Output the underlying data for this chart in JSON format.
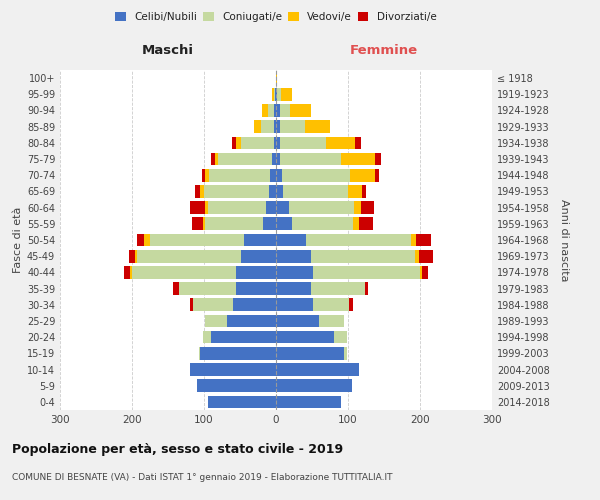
{
  "age_groups": [
    "0-4",
    "5-9",
    "10-14",
    "15-19",
    "20-24",
    "25-29",
    "30-34",
    "35-39",
    "40-44",
    "45-49",
    "50-54",
    "55-59",
    "60-64",
    "65-69",
    "70-74",
    "75-79",
    "80-84",
    "85-89",
    "90-94",
    "95-99",
    "100+"
  ],
  "birth_years": [
    "2014-2018",
    "2009-2013",
    "2004-2008",
    "1999-2003",
    "1994-1998",
    "1989-1993",
    "1984-1988",
    "1979-1983",
    "1974-1978",
    "1969-1973",
    "1964-1968",
    "1959-1963",
    "1954-1958",
    "1949-1953",
    "1944-1948",
    "1939-1943",
    "1934-1938",
    "1929-1933",
    "1924-1928",
    "1919-1923",
    "≤ 1918"
  ],
  "male_celibi": [
    95,
    110,
    120,
    105,
    90,
    68,
    60,
    55,
    55,
    48,
    45,
    18,
    14,
    10,
    8,
    5,
    3,
    3,
    3,
    1,
    0
  ],
  "male_coniugati": [
    0,
    0,
    0,
    2,
    12,
    30,
    55,
    80,
    145,
    145,
    130,
    80,
    80,
    90,
    85,
    75,
    45,
    18,
    8,
    2,
    0
  ],
  "male_vedovi": [
    0,
    0,
    0,
    0,
    0,
    0,
    0,
    0,
    3,
    3,
    8,
    3,
    5,
    5,
    5,
    5,
    8,
    10,
    8,
    2,
    0
  ],
  "male_divorziati": [
    0,
    0,
    0,
    0,
    0,
    0,
    5,
    8,
    8,
    8,
    10,
    15,
    20,
    8,
    5,
    5,
    5,
    0,
    0,
    0,
    0
  ],
  "female_celibi": [
    90,
    105,
    115,
    95,
    80,
    60,
    52,
    48,
    52,
    48,
    42,
    22,
    18,
    10,
    8,
    5,
    5,
    5,
    5,
    2,
    0
  ],
  "female_coniugati": [
    0,
    0,
    0,
    3,
    18,
    35,
    50,
    75,
    148,
    145,
    145,
    85,
    90,
    90,
    95,
    85,
    65,
    35,
    15,
    5,
    0
  ],
  "female_vedovi": [
    0,
    0,
    0,
    0,
    0,
    0,
    0,
    0,
    3,
    5,
    8,
    8,
    10,
    20,
    35,
    48,
    40,
    35,
    28,
    15,
    2
  ],
  "female_divorziati": [
    0,
    0,
    0,
    0,
    0,
    0,
    5,
    5,
    8,
    20,
    20,
    20,
    18,
    5,
    5,
    8,
    8,
    0,
    0,
    0,
    0
  ],
  "color_celibi": "#4472c4",
  "color_coniugati": "#c5d9a0",
  "color_vedovi": "#ffc000",
  "color_divorziati": "#cc0000",
  "title": "Popolazione per età, sesso e stato civile - 2019",
  "subtitle": "COMUNE DI BESNATE (VA) - Dati ISTAT 1° gennaio 2019 - Elaborazione TUTTITALIA.IT",
  "xlabel_left": "Maschi",
  "xlabel_right": "Femmine",
  "ylabel_left": "Fasce di età",
  "ylabel_right": "Anni di nascita",
  "xlim": 300,
  "bg_color": "#f0f0f0",
  "plot_bg": "#ffffff",
  "grid_color": "#cccccc"
}
